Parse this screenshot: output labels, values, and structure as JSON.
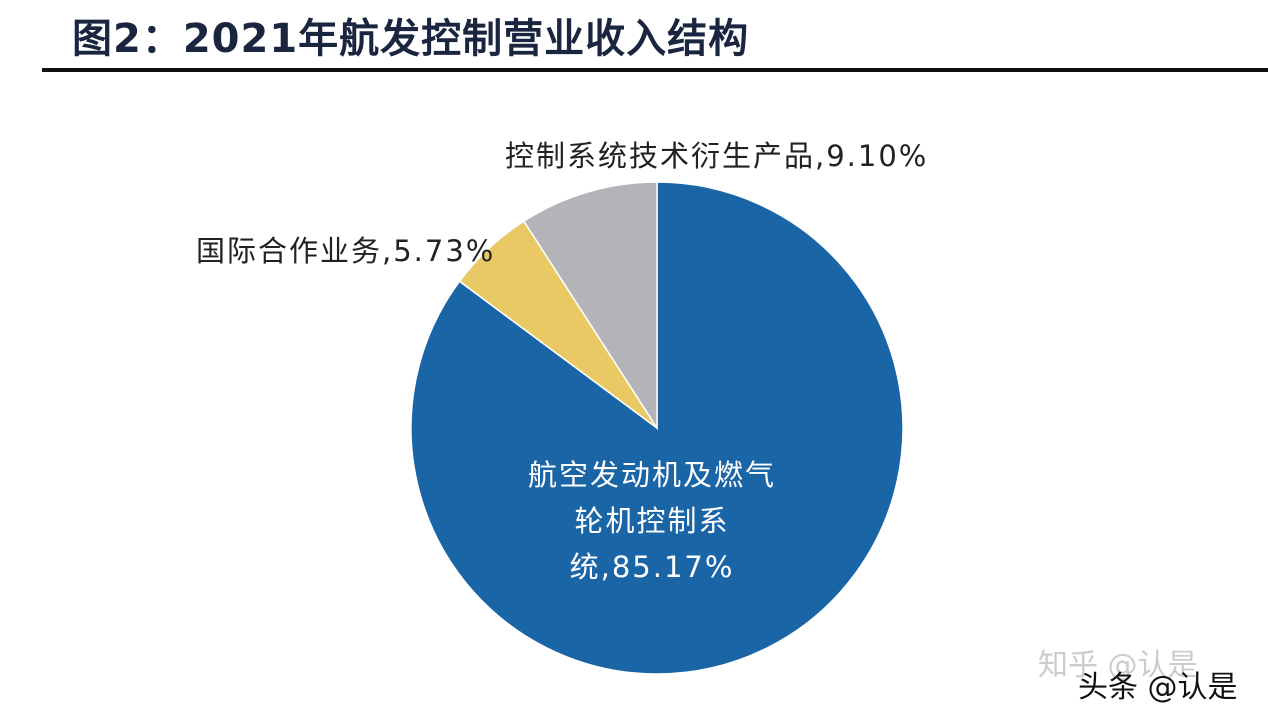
{
  "chart_data": {
    "type": "pie",
    "title": "图2：2021年航发控制营业收入结构",
    "start_angle": "12 o'clock",
    "direction": "clockwise",
    "slices": [
      {
        "label": "航空发动机及燃气轮机控制系统",
        "value": 85.17,
        "display": "航空发动机及燃气|轮机控制系|统,85.17%",
        "color": "#1a65a5"
      },
      {
        "label": "国际合作业务",
        "value": 5.73,
        "display": "国际合作业务,5.73%",
        "color": "#e9c963"
      },
      {
        "label": "控制系统技术衍生产品",
        "value": 9.1,
        "display": "控制系统技术衍生产品,9.10%",
        "color": "#b4b4b8"
      }
    ]
  },
  "labels": {
    "main_line1": "航空发动机及燃气",
    "main_line2": "轮机控制系",
    "main_line3": "统,85.17%",
    "intl": "国际合作业务,5.73%",
    "derived": "控制系统技术衍生产品,9.10%"
  },
  "watermarks": {
    "zhihu": "知乎 @认是",
    "toutiao": "头条 @认是"
  }
}
